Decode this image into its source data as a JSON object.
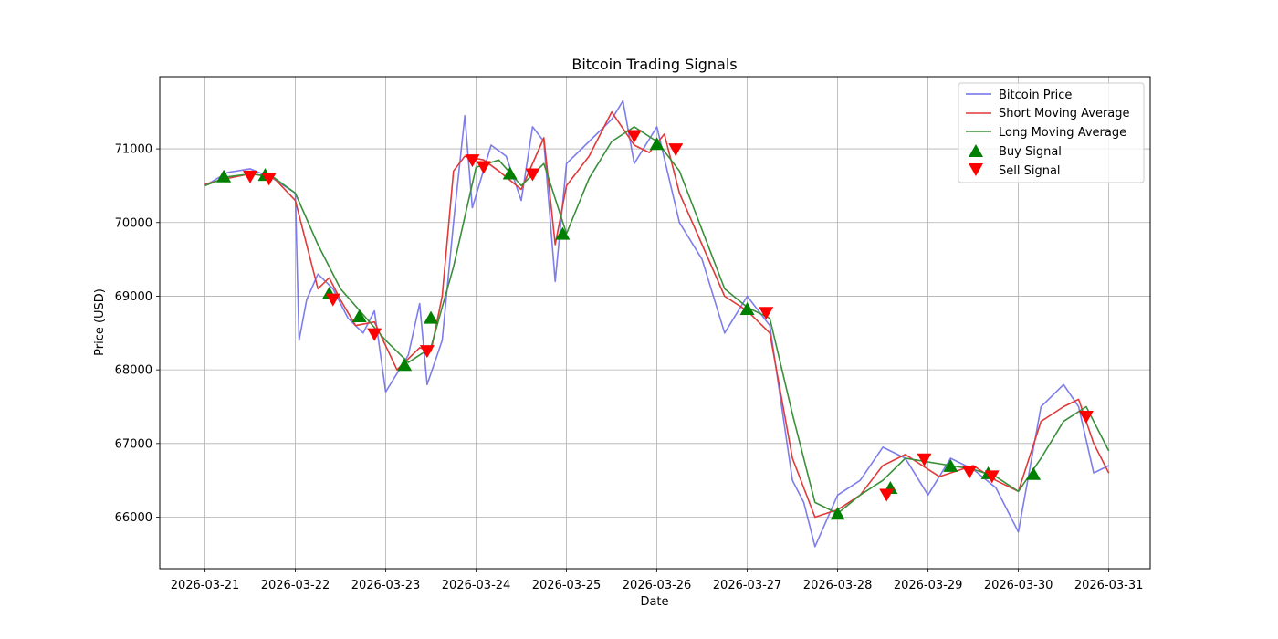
{
  "chart_data": {
    "type": "line",
    "title": "Bitcoin Trading Signals",
    "xlabel": "Date",
    "ylabel": "Price (USD)",
    "grid": true,
    "legend_position": "top-right",
    "x_ticks": [
      "2026-03-21",
      "2026-03-22",
      "2026-03-23",
      "2026-03-24",
      "2026-03-25",
      "2026-03-26",
      "2026-03-27",
      "2026-03-28",
      "2026-03-29",
      "2026-03-30",
      "2026-03-31"
    ],
    "y_ticks": [
      66000,
      67000,
      68000,
      69000,
      70000,
      71000
    ],
    "xlim": [
      "2026-03-20T12:00",
      "2026-03-31T11:00"
    ],
    "ylim": [
      65300,
      71980
    ],
    "colors": {
      "price": "#6f6fea",
      "short": "#e03a3a",
      "long": "#3a8f3a",
      "buy": "#008000",
      "sell": "#ff0000",
      "grid": "#b0b0b0"
    },
    "series": [
      {
        "name": "Bitcoin Price",
        "points": [
          [
            "2026-03-21T00:00",
            70500
          ],
          [
            "2026-03-21T06:00",
            70680
          ],
          [
            "2026-03-21T12:00",
            70730
          ],
          [
            "2026-03-21T18:00",
            70600
          ],
          [
            "2026-03-22T00:00",
            70400
          ],
          [
            "2026-03-22T01:00",
            68400
          ],
          [
            "2026-03-22T03:00",
            68950
          ],
          [
            "2026-03-22T06:00",
            69300
          ],
          [
            "2026-03-22T10:00",
            69100
          ],
          [
            "2026-03-22T14:00",
            68700
          ],
          [
            "2026-03-22T18:00",
            68500
          ],
          [
            "2026-03-22T21:00",
            68800
          ],
          [
            "2026-03-23T00:00",
            67700
          ],
          [
            "2026-03-23T06:00",
            68200
          ],
          [
            "2026-03-23T09:00",
            68900
          ],
          [
            "2026-03-23T11:00",
            67800
          ],
          [
            "2026-03-23T15:00",
            68400
          ],
          [
            "2026-03-23T18:00",
            70000
          ],
          [
            "2026-03-23T21:00",
            71450
          ],
          [
            "2026-03-23T23:00",
            70200
          ],
          [
            "2026-03-24T04:00",
            71050
          ],
          [
            "2026-03-24T08:00",
            70900
          ],
          [
            "2026-03-24T12:00",
            70300
          ],
          [
            "2026-03-24T15:00",
            71300
          ],
          [
            "2026-03-24T18:00",
            71100
          ],
          [
            "2026-03-24T21:00",
            69200
          ],
          [
            "2026-03-25T00:00",
            70800
          ],
          [
            "2026-03-25T06:00",
            71100
          ],
          [
            "2026-03-25T12:00",
            71400
          ],
          [
            "2026-03-25T15:00",
            71650
          ],
          [
            "2026-03-25T18:00",
            70800
          ],
          [
            "2026-03-26T00:00",
            71300
          ],
          [
            "2026-03-26T06:00",
            70000
          ],
          [
            "2026-03-26T12:00",
            69500
          ],
          [
            "2026-03-26T18:00",
            68500
          ],
          [
            "2026-03-27T00:00",
            69000
          ],
          [
            "2026-03-27T06:00",
            68600
          ],
          [
            "2026-03-27T12:00",
            66500
          ],
          [
            "2026-03-27T15:00",
            66200
          ],
          [
            "2026-03-27T18:00",
            65600
          ],
          [
            "2026-03-28T00:00",
            66300
          ],
          [
            "2026-03-28T06:00",
            66500
          ],
          [
            "2026-03-28T12:00",
            66950
          ],
          [
            "2026-03-28T18:00",
            66800
          ],
          [
            "2026-03-29T00:00",
            66300
          ],
          [
            "2026-03-29T06:00",
            66800
          ],
          [
            "2026-03-29T12:00",
            66650
          ],
          [
            "2026-03-29T18:00",
            66400
          ],
          [
            "2026-03-30T00:00",
            65800
          ],
          [
            "2026-03-30T06:00",
            67500
          ],
          [
            "2026-03-30T12:00",
            67800
          ],
          [
            "2026-03-30T16:00",
            67500
          ],
          [
            "2026-03-30T20:00",
            66600
          ],
          [
            "2026-03-31T00:00",
            66700
          ]
        ]
      },
      {
        "name": "Short Moving Average",
        "points": [
          [
            "2026-03-21T00:00",
            70520
          ],
          [
            "2026-03-21T06:00",
            70600
          ],
          [
            "2026-03-21T12:00",
            70660
          ],
          [
            "2026-03-21T18:00",
            70620
          ],
          [
            "2026-03-22T00:00",
            70300
          ],
          [
            "2026-03-22T06:00",
            69100
          ],
          [
            "2026-03-22T09:00",
            69250
          ],
          [
            "2026-03-22T12:00",
            68950
          ],
          [
            "2026-03-22T16:00",
            68600
          ],
          [
            "2026-03-22T21:00",
            68650
          ],
          [
            "2026-03-23T03:00",
            68000
          ],
          [
            "2026-03-23T09:00",
            68300
          ],
          [
            "2026-03-23T12:00",
            68250
          ],
          [
            "2026-03-23T15:00",
            69000
          ],
          [
            "2026-03-23T18:00",
            70700
          ],
          [
            "2026-03-23T21:00",
            70900
          ],
          [
            "2026-03-24T02:00",
            70850
          ],
          [
            "2026-03-24T06:00",
            70700
          ],
          [
            "2026-03-24T12:00",
            70450
          ],
          [
            "2026-03-24T18:00",
            71150
          ],
          [
            "2026-03-24T21:00",
            69700
          ],
          [
            "2026-03-25T00:00",
            70500
          ],
          [
            "2026-03-25T06:00",
            70900
          ],
          [
            "2026-03-25T12:00",
            71500
          ],
          [
            "2026-03-25T18:00",
            71050
          ],
          [
            "2026-03-25T22:00",
            70950
          ],
          [
            "2026-03-26T02:00",
            71200
          ],
          [
            "2026-03-26T06:00",
            70400
          ],
          [
            "2026-03-26T12:00",
            69700
          ],
          [
            "2026-03-26T18:00",
            69000
          ],
          [
            "2026-03-27T00:00",
            68800
          ],
          [
            "2026-03-27T06:00",
            68500
          ],
          [
            "2026-03-27T12:00",
            66800
          ],
          [
            "2026-03-27T18:00",
            66000
          ],
          [
            "2026-03-28T00:00",
            66100
          ],
          [
            "2026-03-28T06:00",
            66300
          ],
          [
            "2026-03-28T12:00",
            66700
          ],
          [
            "2026-03-28T18:00",
            66850
          ],
          [
            "2026-03-29T03:00",
            66550
          ],
          [
            "2026-03-29T12:00",
            66700
          ],
          [
            "2026-03-29T18:00",
            66500
          ],
          [
            "2026-03-30T00:00",
            66350
          ],
          [
            "2026-03-30T06:00",
            67300
          ],
          [
            "2026-03-30T12:00",
            67500
          ],
          [
            "2026-03-30T16:00",
            67600
          ],
          [
            "2026-03-30T20:00",
            67000
          ],
          [
            "2026-03-31T00:00",
            66600
          ]
        ]
      },
      {
        "name": "Long Moving Average",
        "points": [
          [
            "2026-03-21T00:00",
            70500
          ],
          [
            "2026-03-21T06:00",
            70620
          ],
          [
            "2026-03-21T12:00",
            70660
          ],
          [
            "2026-03-21T18:00",
            70620
          ],
          [
            "2026-03-22T00:00",
            70400
          ],
          [
            "2026-03-22T06:00",
            69700
          ],
          [
            "2026-03-22T12:00",
            69100
          ],
          [
            "2026-03-22T18:00",
            68750
          ],
          [
            "2026-03-23T00:00",
            68400
          ],
          [
            "2026-03-23T06:00",
            68100
          ],
          [
            "2026-03-23T12:00",
            68300
          ],
          [
            "2026-03-23T18:00",
            69400
          ],
          [
            "2026-03-24T00:00",
            70750
          ],
          [
            "2026-03-24T06:00",
            70850
          ],
          [
            "2026-03-24T12:00",
            70500
          ],
          [
            "2026-03-24T18:00",
            70800
          ],
          [
            "2026-03-25T00:00",
            69850
          ],
          [
            "2026-03-25T06:00",
            70600
          ],
          [
            "2026-03-25T12:00",
            71100
          ],
          [
            "2026-03-25T18:00",
            71300
          ],
          [
            "2026-03-26T00:00",
            71100
          ],
          [
            "2026-03-26T06:00",
            70700
          ],
          [
            "2026-03-26T12:00",
            69900
          ],
          [
            "2026-03-26T18:00",
            69100
          ],
          [
            "2026-03-27T00:00",
            68850
          ],
          [
            "2026-03-27T06:00",
            68700
          ],
          [
            "2026-03-27T12:00",
            67400
          ],
          [
            "2026-03-27T18:00",
            66200
          ],
          [
            "2026-03-28T00:00",
            66050
          ],
          [
            "2026-03-28T06:00",
            66300
          ],
          [
            "2026-03-28T12:00",
            66500
          ],
          [
            "2026-03-28T18:00",
            66800
          ],
          [
            "2026-03-29T06:00",
            66700
          ],
          [
            "2026-03-29T12:00",
            66650
          ],
          [
            "2026-03-29T18:00",
            66550
          ],
          [
            "2026-03-30T00:00",
            66350
          ],
          [
            "2026-03-30T06:00",
            66800
          ],
          [
            "2026-03-30T12:00",
            67300
          ],
          [
            "2026-03-30T18:00",
            67500
          ],
          [
            "2026-03-31T00:00",
            66900
          ]
        ]
      }
    ],
    "buy_signals": {
      "name": "Buy Signal",
      "points": [
        [
          "2026-03-21T05:00",
          70620
        ],
        [
          "2026-03-21T16:00",
          70640
        ],
        [
          "2026-03-22T09:00",
          69030
        ],
        [
          "2026-03-22T17:00",
          68720
        ],
        [
          "2026-03-23T05:00",
          68060
        ],
        [
          "2026-03-23T12:00",
          68700
        ],
        [
          "2026-03-24T09:00",
          70660
        ],
        [
          "2026-03-24T23:00",
          69840
        ],
        [
          "2026-03-26T00:00",
          71060
        ],
        [
          "2026-03-27T00:00",
          68820
        ],
        [
          "2026-03-28T00:00",
          66040
        ],
        [
          "2026-03-28T14:00",
          66390
        ],
        [
          "2026-03-29T06:00",
          66690
        ],
        [
          "2026-03-29T16:00",
          66590
        ],
        [
          "2026-03-30T04:00",
          66580
        ]
      ]
    },
    "sell_signals": {
      "name": "Sell Signal",
      "points": [
        [
          "2026-03-21T12:00",
          70630
        ],
        [
          "2026-03-21T17:00",
          70600
        ],
        [
          "2026-03-22T10:00",
          68960
        ],
        [
          "2026-03-22T21:00",
          68490
        ],
        [
          "2026-03-23T11:00",
          68260
        ],
        [
          "2026-03-23T23:00",
          70850
        ],
        [
          "2026-03-24T02:00",
          70760
        ],
        [
          "2026-03-24T15:00",
          70660
        ],
        [
          "2026-03-25T18:00",
          71180
        ],
        [
          "2026-03-26T05:00",
          71000
        ],
        [
          "2026-03-27T05:00",
          68780
        ],
        [
          "2026-03-28T13:00",
          66310
        ],
        [
          "2026-03-28T23:00",
          66790
        ],
        [
          "2026-03-29T11:00",
          66620
        ],
        [
          "2026-03-29T17:00",
          66560
        ],
        [
          "2026-03-30T18:00",
          67370
        ]
      ]
    }
  }
}
